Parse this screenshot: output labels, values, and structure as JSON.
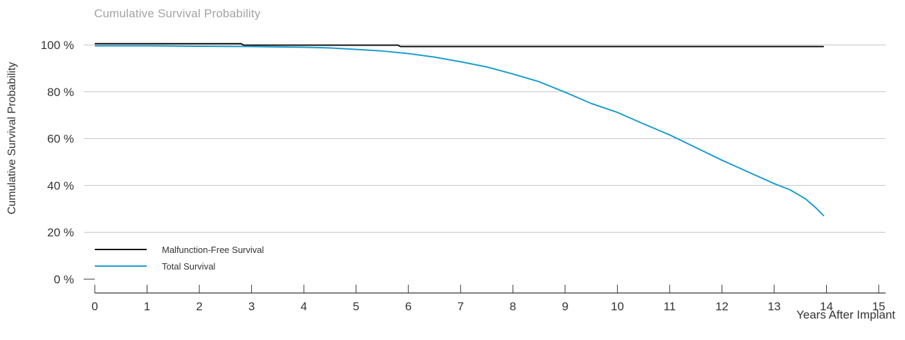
{
  "chart_data": {
    "type": "line",
    "title": "Cumulative Survival Probability",
    "xlabel": "Years After Implant",
    "ylabel": "Cumulative Survival Probability",
    "xlim": [
      0,
      15
    ],
    "ylim": [
      0,
      100
    ],
    "x_ticks": [
      "0",
      "1",
      "2",
      "3",
      "4",
      "5",
      "6",
      "7",
      "8",
      "9",
      "10",
      "11",
      "12",
      "13",
      "14",
      "15"
    ],
    "y_ticks": [
      "0 %",
      "20 %",
      "40 %",
      "60 %",
      "80 %",
      "100 %"
    ],
    "grid": "horizontal",
    "legend": "bottom-left",
    "series": [
      {
        "name": "Malfunction-Free Survival",
        "color": "#111111",
        "points": [
          [
            0,
            100.5
          ],
          [
            2.8,
            100.5
          ],
          [
            2.85,
            99.9
          ],
          [
            5.8,
            99.9
          ],
          [
            5.85,
            99.3
          ],
          [
            13.95,
            99.3
          ]
        ]
      },
      {
        "name": "Total Survival",
        "color": "#1a9ccf",
        "points": [
          [
            0,
            99.6
          ],
          [
            1,
            99.6
          ],
          [
            2,
            99.4
          ],
          [
            3,
            99.3
          ],
          [
            4,
            99.0
          ],
          [
            4.5,
            98.7
          ],
          [
            5,
            98.1
          ],
          [
            5.5,
            97.4
          ],
          [
            6,
            96.3
          ],
          [
            6.5,
            94.8
          ],
          [
            7,
            92.8
          ],
          [
            7.5,
            90.6
          ],
          [
            8,
            87.6
          ],
          [
            8.5,
            84.3
          ],
          [
            9,
            79.8
          ],
          [
            9.5,
            75.0
          ],
          [
            10,
            71.2
          ],
          [
            10.5,
            66.3
          ],
          [
            11,
            61.6
          ],
          [
            11.5,
            56.2
          ],
          [
            12,
            50.8
          ],
          [
            12.5,
            45.8
          ],
          [
            13,
            40.8
          ],
          [
            13.3,
            38.2
          ],
          [
            13.6,
            34.3
          ],
          [
            13.8,
            30.4
          ],
          [
            13.95,
            27.0
          ]
        ]
      }
    ]
  }
}
